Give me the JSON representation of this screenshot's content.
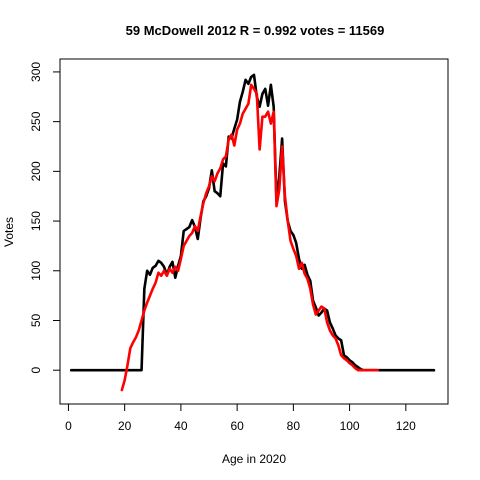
{
  "chart_data": {
    "type": "line",
    "title": "59 McDowell 2012 R = 0.992 votes = 11569",
    "xlabel": "Age in 2020",
    "ylabel": "Votes",
    "xlim": [
      -3,
      135
    ],
    "ylim": [
      -34,
      313
    ],
    "x_ticks": [
      0,
      20,
      40,
      60,
      80,
      100,
      120
    ],
    "y_ticks": [
      0,
      50,
      100,
      150,
      200,
      250,
      300
    ],
    "grid": false,
    "series": [
      {
        "color": "#000000",
        "x": [
          1,
          26,
          27,
          28,
          29,
          30,
          31,
          32,
          33,
          34,
          35,
          36,
          37,
          38,
          39,
          40,
          41,
          42,
          43,
          44,
          45,
          46,
          47,
          48,
          49,
          50,
          51,
          52,
          53,
          54,
          55,
          56,
          57,
          58,
          59,
          60,
          61,
          62,
          63,
          64,
          65,
          66,
          67,
          68,
          69,
          70,
          71,
          72,
          73,
          74,
          75,
          76,
          77,
          78,
          79,
          80,
          81,
          82,
          83,
          84,
          85,
          86,
          87,
          88,
          89,
          90,
          91,
          92,
          93,
          94,
          95,
          96,
          97,
          98,
          99,
          100,
          101,
          102,
          103,
          104,
          105,
          106,
          107,
          108,
          109,
          110,
          111,
          130
        ],
        "values": [
          0,
          0,
          82,
          100,
          96,
          103,
          105,
          110,
          108,
          104,
          96,
          104,
          109,
          93,
          105,
          115,
          140,
          142,
          144,
          151,
          144,
          132,
          153,
          170,
          175,
          183,
          201,
          180,
          178,
          175,
          208,
          205,
          235,
          233,
          243,
          252,
          270,
          280,
          292,
          288,
          295,
          297,
          275,
          265,
          278,
          283,
          266,
          287,
          265,
          170,
          195,
          233,
          170,
          150,
          140,
          136,
          128,
          112,
          102,
          106,
          96,
          90,
          70,
          63,
          55,
          58,
          62,
          60,
          48,
          42,
          35,
          32,
          30,
          15,
          13,
          10,
          8,
          5,
          3,
          1,
          0,
          0,
          0,
          0,
          0,
          0,
          0,
          0
        ]
      },
      {
        "color": "#ff0000",
        "x": [
          19,
          20,
          21,
          22,
          23,
          24,
          25,
          26,
          27,
          28,
          29,
          30,
          31,
          32,
          33,
          34,
          35,
          36,
          37,
          38,
          39,
          40,
          41,
          42,
          43,
          44,
          45,
          46,
          47,
          48,
          49,
          50,
          51,
          52,
          53,
          54,
          55,
          56,
          57,
          58,
          59,
          60,
          61,
          62,
          63,
          64,
          65,
          66,
          67,
          68,
          69,
          70,
          71,
          72,
          73,
          74,
          75,
          76,
          77,
          78,
          79,
          80,
          81,
          82,
          83,
          84,
          85,
          86,
          87,
          88,
          89,
          90,
          91,
          92,
          93,
          94,
          95,
          96,
          97,
          98,
          99,
          100,
          101,
          102,
          103,
          104,
          105,
          106,
          107,
          108,
          109,
          110
        ],
        "values": [
          -20,
          -10,
          5,
          22,
          28,
          33,
          40,
          50,
          60,
          68,
          75,
          82,
          88,
          98,
          95,
          100,
          95,
          102,
          98,
          104,
          100,
          112,
          125,
          130,
          135,
          138,
          145,
          140,
          155,
          168,
          178,
          185,
          195,
          190,
          198,
          203,
          212,
          215,
          232,
          237,
          226,
          242,
          248,
          258,
          263,
          268,
          287,
          283,
          278,
          222,
          255,
          255,
          260,
          248,
          260,
          165,
          182,
          225,
          175,
          150,
          130,
          122,
          115,
          102,
          108,
          97,
          92,
          82,
          66,
          56,
          60,
          64,
          62,
          48,
          40,
          35,
          32,
          25,
          15,
          12,
          10,
          7,
          5,
          2,
          0,
          0,
          0,
          0,
          0,
          0,
          0,
          0
        ]
      }
    ]
  }
}
